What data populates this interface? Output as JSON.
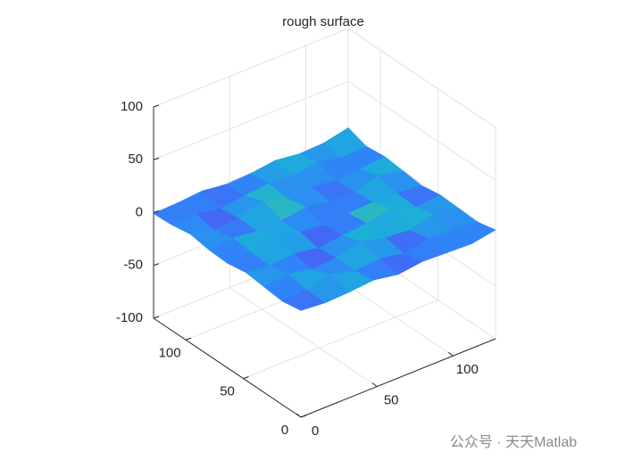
{
  "chart_data": {
    "type": "surface",
    "title": "rough surface",
    "x": [
      0,
      16,
      32,
      48,
      64,
      80,
      96,
      112,
      128
    ],
    "y": [
      0,
      16,
      32,
      48,
      64,
      80,
      96,
      112,
      128
    ],
    "z": [
      [
        1,
        -1,
        0,
        2,
        -2,
        1,
        0,
        -1,
        3
      ],
      [
        -2,
        0,
        5,
        -1,
        1,
        -3,
        2,
        0,
        -1
      ],
      [
        0,
        3,
        -2,
        0,
        6,
        0,
        -2,
        4,
        0
      ],
      [
        2,
        -1,
        1,
        -3,
        0,
        2,
        7,
        -1,
        1
      ],
      [
        -1,
        0,
        6,
        1,
        -2,
        0,
        1,
        0,
        -2
      ],
      [
        0,
        2,
        -1,
        0,
        3,
        -1,
        0,
        5,
        0
      ],
      [
        3,
        -2,
        0,
        7,
        0,
        1,
        -2,
        0,
        2
      ],
      [
        0,
        1,
        -3,
        0,
        2,
        0,
        4,
        -1,
        0
      ],
      [
        -1,
        0,
        2,
        -1,
        0,
        3,
        0,
        1,
        6
      ]
    ],
    "xlim": [
      0,
      128
    ],
    "ylim": [
      0,
      128
    ],
    "zlim": [
      -100,
      100
    ],
    "xticks": [
      0,
      50,
      100
    ],
    "yticks": [
      0,
      50,
      100
    ],
    "zticks": [
      -100,
      -50,
      0,
      50,
      100
    ],
    "grid": true,
    "colormap": [
      "#3e26a8",
      "#4760f5",
      "#2e87f7",
      "#1cb0d9",
      "#4bc790",
      "#c3c02f",
      "#f9d42c"
    ],
    "watermark": "公众号 · 天天Matlab"
  }
}
